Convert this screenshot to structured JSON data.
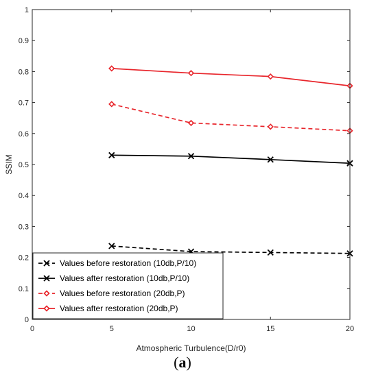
{
  "chart_data": {
    "type": "line",
    "title": "",
    "xlabel": "Atmospheric Turbulence(D/r0)",
    "ylabel": "SSIM",
    "xlim": [
      0,
      20
    ],
    "ylim": [
      0,
      1
    ],
    "x_ticks": [
      "0",
      "5",
      "10",
      "15",
      "20"
    ],
    "y_ticks": [
      "0",
      "0.1",
      "0.2",
      "0.3",
      "0.4",
      "0.5",
      "0.6",
      "0.7",
      "0.8",
      "0.9",
      "1"
    ],
    "x": [
      5,
      10,
      15,
      20
    ],
    "grid": false,
    "legend_position": "bottom-left",
    "series": [
      {
        "name": "Values before restoration (10db,P/10)",
        "values": [
          0.237,
          0.219,
          0.216,
          0.213
        ],
        "color": "#000000",
        "line_style": "dashed",
        "marker": "x-mark"
      },
      {
        "name": "Values after restoration (10db,P/10)",
        "values": [
          0.53,
          0.527,
          0.516,
          0.504
        ],
        "color": "#000000",
        "line_style": "solid",
        "marker": "x-mark"
      },
      {
        "name": "Values before restoration (20db,P)",
        "values": [
          0.695,
          0.634,
          0.622,
          0.609
        ],
        "color": "#e8252b",
        "line_style": "dashed",
        "marker": "diamond-open"
      },
      {
        "name": "Values after restoration (20db,P)",
        "values": [
          0.81,
          0.795,
          0.784,
          0.754
        ],
        "color": "#e8252b",
        "line_style": "solid",
        "marker": "diamond-open"
      }
    ]
  },
  "caption": {
    "open": "(",
    "letter": "a",
    "close": ")"
  }
}
